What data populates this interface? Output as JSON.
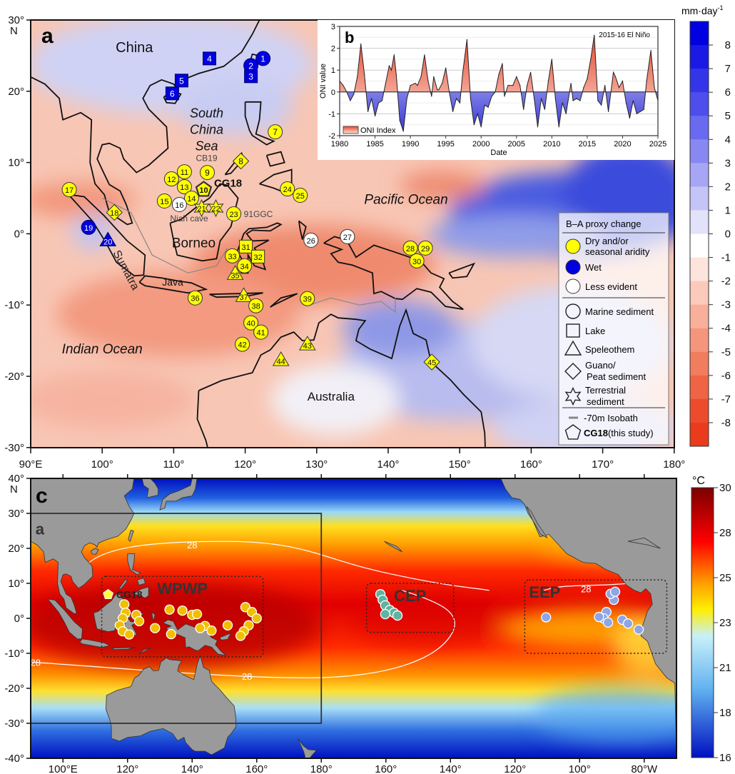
{
  "panel_a": {
    "label": "a",
    "lat_ticks": [
      "30°",
      "20°",
      "10°",
      "0°",
      "-10°",
      "-20°",
      "-30°"
    ],
    "lat_ticks_values": [
      30,
      20,
      10,
      0,
      -10,
      -20,
      -30
    ],
    "north_label": "N",
    "lon_ticks": [
      "90°E",
      "100°",
      "110°",
      "120°",
      "130°",
      "140°",
      "150°",
      "160°",
      "170°",
      "180°"
    ],
    "lon_ticks_values": [
      90,
      100,
      110,
      120,
      130,
      140,
      150,
      160,
      170,
      180
    ],
    "place_names": [
      {
        "text": "China",
        "lon": 104.5,
        "lat": 25.5,
        "size": 20,
        "italic": false
      },
      {
        "text": "South",
        "lon": 114.6,
        "lat": 16.3,
        "size": 18,
        "italic": true
      },
      {
        "text": "China",
        "lon": 114.6,
        "lat": 14,
        "size": 18,
        "italic": true
      },
      {
        "text": "Sea",
        "lon": 114.6,
        "lat": 11.7,
        "size": 18,
        "italic": true
      },
      {
        "text": "Borneo",
        "lon": 112.8,
        "lat": -1.9,
        "size": 19,
        "italic": false
      },
      {
        "text": "Pacific Ocean",
        "lon": 142.5,
        "lat": 4.2,
        "size": 19,
        "italic": true
      },
      {
        "text": "Indian Ocean",
        "lon": 100,
        "lat": -16.8,
        "size": 19,
        "italic": true
      },
      {
        "text": "Australia",
        "lon": 132,
        "lat": -23.4,
        "size": 17,
        "italic": false
      },
      {
        "text": "Java",
        "lon": 112.3,
        "lat": -7.5,
        "size": 14,
        "italic": false
      },
      {
        "text": "CB19",
        "lon": 114.6,
        "lat": 10.2,
        "size": 12,
        "italic": false,
        "gray": true
      },
      {
        "text": "Niah cave",
        "lon": 111.5,
        "lat": 2.2,
        "size": 12,
        "italic": false,
        "gray": true
      },
      {
        "text": "91GGC",
        "lon": 122.3,
        "lat": 2.8,
        "size": 12,
        "italic": false,
        "gray": true
      },
      {
        "text": "CG18",
        "lon": 117.6,
        "lat": 6.6,
        "size": 15,
        "italic": false,
        "bold": true
      }
    ],
    "sumatra_label": "Sumatra",
    "sites": [
      {
        "n": "1",
        "lon": 122.5,
        "lat": 24.6,
        "shape": "circle",
        "result": "wet"
      },
      {
        "n": "2",
        "lon": 120.8,
        "lat": 23.6,
        "shape": "circle",
        "result": "wet"
      },
      {
        "n": "3",
        "lon": 120.8,
        "lat": 22.1,
        "shape": "square",
        "result": "wet"
      },
      {
        "n": "4",
        "lon": 115.0,
        "lat": 24.6,
        "shape": "square",
        "result": "wet"
      },
      {
        "n": "5",
        "lon": 111.1,
        "lat": 21.5,
        "shape": "square",
        "result": "wet"
      },
      {
        "n": "6",
        "lon": 109.8,
        "lat": 19.7,
        "shape": "square",
        "result": "wet"
      },
      {
        "n": "7",
        "lon": 124.2,
        "lat": 14.3,
        "shape": "circle",
        "result": "dry"
      },
      {
        "n": "8",
        "lon": 119.4,
        "lat": 10.2,
        "shape": "diamond",
        "result": "dry"
      },
      {
        "n": "9",
        "lon": 114.7,
        "lat": 8.6,
        "shape": "circle",
        "result": "dry"
      },
      {
        "n": "10",
        "lon": 114.2,
        "lat": 6.2,
        "shape": "pentagon",
        "result": "dry"
      },
      {
        "n": "11",
        "lon": 111.5,
        "lat": 8.7,
        "shape": "circle",
        "result": "dry"
      },
      {
        "n": "12",
        "lon": 109.7,
        "lat": 7.7,
        "shape": "circle",
        "result": "dry"
      },
      {
        "n": "13",
        "lon": 111.5,
        "lat": 6.6,
        "shape": "circle",
        "result": "dry"
      },
      {
        "n": "14",
        "lon": 112.5,
        "lat": 5.0,
        "shape": "circle",
        "result": "dry"
      },
      {
        "n": "15",
        "lon": 108.7,
        "lat": 4.6,
        "shape": "circle",
        "result": "dry"
      },
      {
        "n": "16",
        "lon": 110.8,
        "lat": 4.1,
        "shape": "circle",
        "result": "less"
      },
      {
        "n": "17",
        "lon": 95.4,
        "lat": 6.2,
        "shape": "circle",
        "result": "dry"
      },
      {
        "n": "18",
        "lon": 101.7,
        "lat": 3.0,
        "shape": "diamond",
        "result": "dry"
      },
      {
        "n": "19",
        "lon": 98.1,
        "lat": 0.9,
        "shape": "circle",
        "result": "wet"
      },
      {
        "n": "20",
        "lon": 100.8,
        "lat": -0.9,
        "shape": "triangle",
        "result": "wet"
      },
      {
        "n": "21",
        "lon": 113.9,
        "lat": 3.6,
        "shape": "star",
        "result": "dry"
      },
      {
        "n": "22",
        "lon": 115.9,
        "lat": 3.6,
        "shape": "star",
        "result": "dry"
      },
      {
        "n": "23",
        "lon": 118.4,
        "lat": 2.8,
        "shape": "circle",
        "result": "dry"
      },
      {
        "n": "24",
        "lon": 125.9,
        "lat": 6.3,
        "shape": "circle",
        "result": "dry"
      },
      {
        "n": "25",
        "lon": 127.7,
        "lat": 5.4,
        "shape": "circle",
        "result": "dry"
      },
      {
        "n": "26",
        "lon": 129.2,
        "lat": -0.9,
        "shape": "circle",
        "result": "less"
      },
      {
        "n": "27",
        "lon": 134.3,
        "lat": -0.4,
        "shape": "circle",
        "result": "less"
      },
      {
        "n": "28",
        "lon": 143.1,
        "lat": -2.0,
        "shape": "circle",
        "result": "dry"
      },
      {
        "n": "29",
        "lon": 145.2,
        "lat": -2.0,
        "shape": "circle",
        "result": "dry"
      },
      {
        "n": "30",
        "lon": 144.0,
        "lat": -3.8,
        "shape": "circle",
        "result": "dry"
      },
      {
        "n": "31",
        "lon": 120.1,
        "lat": -1.8,
        "shape": "square",
        "result": "dry"
      },
      {
        "n": "32",
        "lon": 121.8,
        "lat": -3.2,
        "shape": "square",
        "result": "dry"
      },
      {
        "n": "33",
        "lon": 118.2,
        "lat": -3.1,
        "shape": "circle",
        "result": "dry"
      },
      {
        "n": "34",
        "lon": 119.9,
        "lat": -4.5,
        "shape": "circle",
        "result": "dry"
      },
      {
        "n": "35",
        "lon": 118.6,
        "lat": -5.6,
        "shape": "triangle",
        "result": "dry"
      },
      {
        "n": "36",
        "lon": 113.0,
        "lat": -9.0,
        "shape": "circle",
        "result": "dry"
      },
      {
        "n": "37",
        "lon": 119.8,
        "lat": -8.7,
        "shape": "triangle",
        "result": "dry"
      },
      {
        "n": "38",
        "lon": 121.5,
        "lat": -10.1,
        "shape": "circle",
        "result": "dry"
      },
      {
        "n": "39",
        "lon": 128.7,
        "lat": -9.1,
        "shape": "circle",
        "result": "dry"
      },
      {
        "n": "40",
        "lon": 120.8,
        "lat": -12.5,
        "shape": "circle",
        "result": "dry"
      },
      {
        "n": "41",
        "lon": 122.2,
        "lat": -13.8,
        "shape": "circle",
        "result": "dry"
      },
      {
        "n": "42",
        "lon": 119.6,
        "lat": -15.5,
        "shape": "circle",
        "result": "dry"
      },
      {
        "n": "43",
        "lon": 128.7,
        "lat": -15.5,
        "shape": "triangle",
        "result": "dry"
      },
      {
        "n": "44",
        "lon": 125.0,
        "lat": -17.7,
        "shape": "triangle",
        "result": "dry"
      },
      {
        "n": "45",
        "lon": 146.1,
        "lat": -18.0,
        "shape": "diamond",
        "result": "dry"
      }
    ],
    "legend": {
      "title": "B–A proxy change",
      "colors": [
        {
          "label1": "Dry and/or",
          "label2": "seasonal aridity",
          "result": "dry"
        },
        {
          "label1": "Wet",
          "label2": "",
          "result": "wet"
        },
        {
          "label1": "Less evident",
          "label2": "",
          "result": "less"
        }
      ],
      "shapes": [
        {
          "label1": "Marine sediment",
          "label2": "",
          "shape": "circle"
        },
        {
          "label1": "Lake",
          "label2": "",
          "shape": "square"
        },
        {
          "label1": "Speleothem",
          "label2": "",
          "shape": "triangle"
        },
        {
          "label1": "Guano/",
          "label2": "Peat sediment",
          "shape": "diamond"
        },
        {
          "label1": "Terrestrial",
          "label2": "sediment",
          "shape": "star"
        }
      ],
      "isobath": "-70m Isobath",
      "cg18_bold": "CG18",
      "cg18_rest": "(this study)"
    },
    "colorbar": {
      "unit": "mm·day",
      "unit_sup": "-1",
      "ticks": [
        "8",
        "7",
        "6",
        "5",
        "4",
        "3",
        "2",
        "1",
        "0",
        "-1",
        "-2",
        "-3",
        "-4",
        "-5",
        "-6",
        "-7",
        "-8"
      ]
    }
  },
  "panel_b": {
    "label": "b",
    "annotation": "2015-16 El Niño",
    "legend": "ONI Index",
    "chart_data": {
      "type": "area",
      "title": "",
      "xlabel": "Date",
      "ylabel": "ONI value",
      "xlim": [
        1980,
        2025
      ],
      "ylim": [
        -2,
        3
      ],
      "xticks": [
        "1980",
        "1985",
        "1990",
        "1995",
        "2000",
        "2005",
        "2010",
        "2015",
        "2020",
        "2025"
      ],
      "yticks": [
        "3",
        "2",
        "1",
        "0",
        "-1",
        "-2"
      ],
      "grid": true,
      "x": [
        1980,
        1980.5,
        1981,
        1981.5,
        1982,
        1982.5,
        1983,
        1983.5,
        1984,
        1984.5,
        1985,
        1985.5,
        1986,
        1986.5,
        1987,
        1987.3,
        1987.7,
        1988,
        1988.5,
        1989,
        1989.5,
        1990,
        1990.7,
        1991,
        1991.5,
        1992,
        1992.5,
        1993,
        1993.3,
        1993.8,
        1994,
        1994.5,
        1995,
        1995.5,
        1996,
        1996.5,
        1997,
        1997.4,
        1998,
        1998.5,
        1999,
        1999.5,
        2000,
        2000.5,
        2001,
        2001.5,
        2002,
        2002.5,
        2003,
        2003.3,
        2003.8,
        2004.5,
        2005,
        2005.5,
        2006,
        2006.5,
        2007,
        2007.5,
        2008,
        2008.5,
        2009,
        2009.5,
        2010,
        2010.5,
        2011,
        2011.5,
        2012,
        2012.7,
        2013,
        2013.5,
        2014,
        2014.5,
        2015,
        2015.5,
        2016,
        2016.5,
        2017,
        2017.5,
        2018,
        2018.7,
        2019,
        2019.5,
        2020,
        2020.5,
        2021,
        2021.5,
        2022,
        2022.5,
        2023,
        2023.4,
        2024,
        2024.5,
        2025
      ],
      "values": [
        0.5,
        0.3,
        0,
        -0.4,
        -0.1,
        0.7,
        2.2,
        0.8,
        -0.9,
        -0.3,
        -1.1,
        -0.5,
        -0.4,
        0.4,
        1.2,
        1.0,
        1.7,
        0.8,
        -1.3,
        -1.8,
        -0.3,
        0.3,
        0.4,
        0.3,
        0.7,
        1.7,
        0.5,
        -0.2,
        0.7,
        0.1,
        0.1,
        0.4,
        1.1,
        0,
        -0.9,
        -0.3,
        -0.5,
        0.9,
        2.4,
        -0.3,
        -1.5,
        -1.0,
        -1.6,
        -0.6,
        -0.7,
        -0.2,
        0,
        0.8,
        1.3,
        -0.2,
        0.3,
        0.3,
        0.7,
        0.3,
        -0.8,
        0.3,
        0.9,
        -0.3,
        -1.6,
        -0.3,
        -0.8,
        0.5,
        1.5,
        -0.3,
        -1.6,
        -0.5,
        -1.0,
        0.4,
        -0.4,
        -0.3,
        -0.4,
        0.2,
        0.6,
        1.5,
        2.6,
        -0.4,
        -0.6,
        0.3,
        -0.9,
        0.9,
        0.7,
        0.2,
        0.5,
        -0.5,
        -1.2,
        -0.4,
        -1.0,
        -0.9,
        -0.8,
        0.5,
        1.9,
        0.2,
        -0.4
      ],
      "colors": {
        "positive": "#e8604a",
        "negative": "#5a5ae0"
      }
    }
  },
  "panel_c": {
    "label": "c",
    "box_label": "a",
    "lat_ticks": [
      "40°",
      "30°",
      "20°",
      "10°",
      "0°",
      "-10°",
      "-20°",
      "-30°",
      "-40°"
    ],
    "lat_ticks_values": [
      40,
      30,
      20,
      10,
      0,
      -10,
      -20,
      -30,
      -40
    ],
    "north_label": "N",
    "lon_ticks": [
      "100°E",
      "120°",
      "140°",
      "160°",
      "180°",
      "160°",
      "140°",
      "120°",
      "100°",
      "80°W"
    ],
    "lon_ticks_values": [
      100,
      120,
      140,
      160,
      180,
      200,
      220,
      240,
      260,
      280
    ],
    "regions": [
      {
        "name": "WPWP",
        "lon": [
          112,
          162
        ],
        "lat": [
          12,
          -11
        ]
      },
      {
        "name": "CEP",
        "lon": [
          194,
          221
        ],
        "lat": [
          10,
          -4
        ]
      },
      {
        "name": "EEP",
        "lon": [
          243,
          287
        ],
        "lat": [
          11,
          -10
        ]
      }
    ],
    "contour_label": "28",
    "cg18_label": "CG18",
    "colorbar": {
      "unit": "°C",
      "ticks": [
        "30",
        "28",
        "25",
        "23",
        "21",
        "18",
        "16"
      ]
    },
    "sites_wpwp": [
      [
        119,
        4
      ],
      [
        119.4,
        1.6
      ],
      [
        118.5,
        0
      ],
      [
        117.6,
        -2
      ],
      [
        118.5,
        -3.7
      ],
      [
        122.7,
        1
      ],
      [
        123.6,
        -0.8
      ],
      [
        120.5,
        -4.6
      ],
      [
        128.5,
        -2.8
      ],
      [
        133.5,
        -4.5
      ],
      [
        140,
        1
      ],
      [
        141.5,
        1.2
      ],
      [
        144,
        -2.2
      ],
      [
        142.5,
        -2.8
      ],
      [
        151,
        -2
      ],
      [
        146,
        -3.5
      ],
      [
        156.5,
        3.2
      ],
      [
        158.5,
        1.8
      ],
      [
        160,
        0
      ],
      [
        157.5,
        -2
      ],
      [
        156,
        -3.7
      ],
      [
        155,
        -5
      ],
      [
        133,
        2.5
      ],
      [
        137,
        2.2
      ]
    ],
    "sites_cep": [
      [
        198.3,
        6.9
      ],
      [
        199,
        5.3
      ],
      [
        199.8,
        3.7
      ],
      [
        201.2,
        2.4
      ],
      [
        202.5,
        1.6
      ],
      [
        203.6,
        0.8
      ],
      [
        199.8,
        1.2
      ]
    ],
    "sites_eep": [
      [
        249.6,
        0.3
      ],
      [
        268.3,
        1.8
      ],
      [
        267.4,
        0
      ],
      [
        270.6,
        5.3
      ],
      [
        269.6,
        7
      ],
      [
        271,
        7.6
      ],
      [
        273.2,
        -0.4
      ],
      [
        275,
        -1.5
      ],
      [
        278.3,
        -3.2
      ],
      [
        268.8,
        -1.2
      ],
      [
        266,
        0.4
      ]
    ]
  },
  "colors": {
    "dry": "#ffff00",
    "wet": "#0000e0",
    "less": "#ffffff",
    "cep": "#5fb3a0",
    "eep": "#8fa6e6"
  }
}
